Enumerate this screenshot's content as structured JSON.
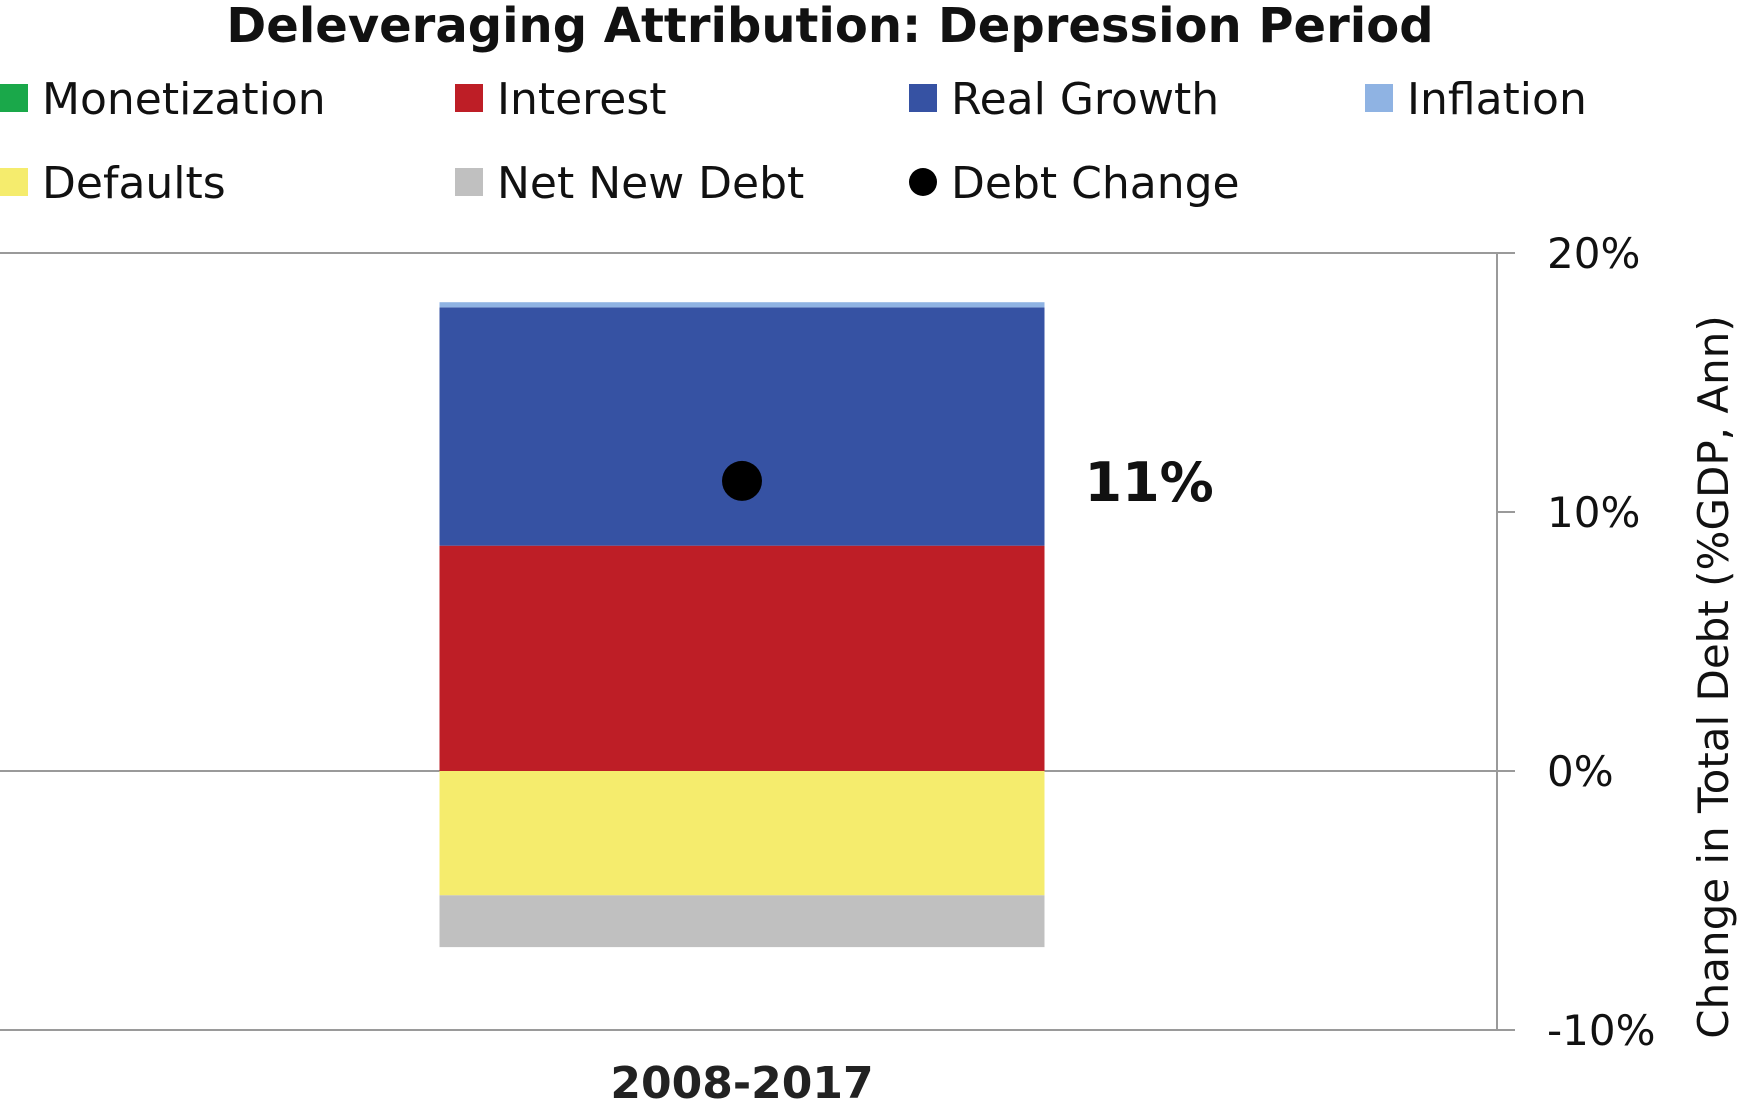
{
  "chart_data": {
    "type": "bar",
    "stacked": true,
    "title": "Deleveraging Attribution: Depression Period",
    "ylabel": "Change in Total Debt (%GDP, Ann)",
    "xlabel": "",
    "ylim": [
      -10,
      20
    ],
    "yticks": [
      20,
      10,
      0,
      -10
    ],
    "ytick_labels": [
      "20%",
      "10%",
      "0%",
      "-10%"
    ],
    "y_axis_side": "right",
    "grid": false,
    "legend_position": "top",
    "categories": [
      "2008-2017"
    ],
    "series": [
      {
        "name": "Monetization",
        "color": "#1aa84a",
        "values": [
          0.0
        ]
      },
      {
        "name": "Interest",
        "color": "#be1e26",
        "values": [
          8.7
        ]
      },
      {
        "name": "Real Growth",
        "color": "#3652a3",
        "values": [
          9.2
        ]
      },
      {
        "name": "Inflation",
        "color": "#8fb3e3",
        "values": [
          0.2
        ]
      },
      {
        "name": "Defaults",
        "color": "#f5ec6d",
        "values": [
          -4.8
        ]
      },
      {
        "name": "Net New Debt",
        "color": "#c0c0c0",
        "values": [
          -2.0
        ]
      }
    ],
    "markers": [
      {
        "name": "Debt Change",
        "color": "#000000",
        "values": [
          11.2
        ]
      }
    ],
    "annotations": [
      {
        "category": "2008-2017",
        "text": "11%"
      }
    ]
  }
}
